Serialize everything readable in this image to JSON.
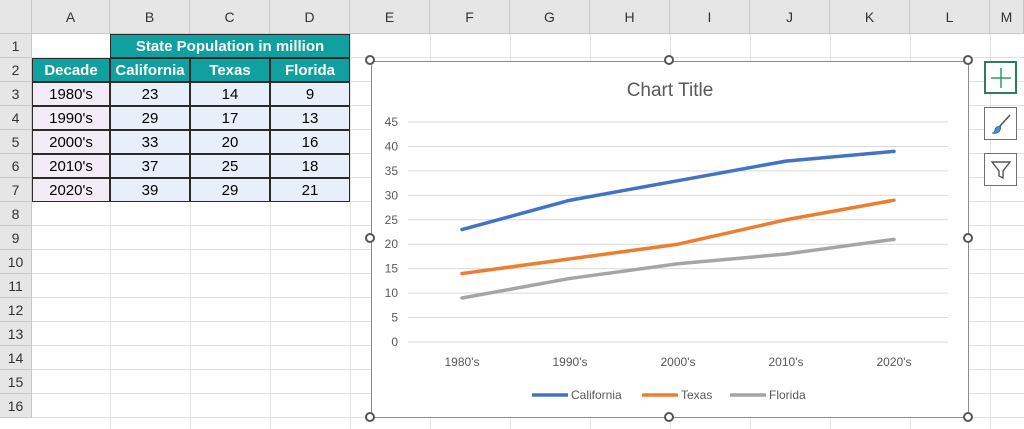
{
  "columns": [
    "A",
    "B",
    "C",
    "D",
    "E",
    "F",
    "G",
    "H",
    "I",
    "J",
    "K",
    "L",
    "M"
  ],
  "rows": [
    "1",
    "2",
    "3",
    "4",
    "5",
    "6",
    "7",
    "8",
    "9",
    "10",
    "11",
    "12",
    "13",
    "14",
    "15",
    "16"
  ],
  "table": {
    "group_header": "State Population in million",
    "headers": [
      "Decade",
      "California",
      "Texas",
      "Florida"
    ],
    "rows": [
      [
        "1980's",
        "23",
        "14",
        "9"
      ],
      [
        "1990's",
        "29",
        "17",
        "13"
      ],
      [
        "2000's",
        "33",
        "20",
        "16"
      ],
      [
        "2010's",
        "37",
        "25",
        "18"
      ],
      [
        "2020's",
        "39",
        "29",
        "21"
      ]
    ]
  },
  "chart_data": {
    "type": "line",
    "title": "Chart Title",
    "categories": [
      "1980's",
      "1990's",
      "2000's",
      "2010's",
      "2020's"
    ],
    "series": [
      {
        "name": "California",
        "values": [
          23,
          29,
          33,
          37,
          39
        ],
        "color": "#4472c4"
      },
      {
        "name": "Texas",
        "values": [
          14,
          17,
          20,
          25,
          29
        ],
        "color": "#ed7d31"
      },
      {
        "name": "Florida",
        "values": [
          9,
          13,
          16,
          18,
          21
        ],
        "color": "#a5a5a5"
      }
    ],
    "ylim": [
      0,
      45
    ],
    "yticks": [
      "0",
      "5",
      "10",
      "15",
      "20",
      "25",
      "30",
      "35",
      "40",
      "45"
    ],
    "grid": true,
    "legend": "bottom"
  },
  "side_buttons": [
    {
      "icon": "plus-icon",
      "name": "chart-elements-button"
    },
    {
      "icon": "paintbrush-icon",
      "name": "chart-styles-button"
    },
    {
      "icon": "funnel-icon",
      "name": "chart-filters-button"
    }
  ]
}
